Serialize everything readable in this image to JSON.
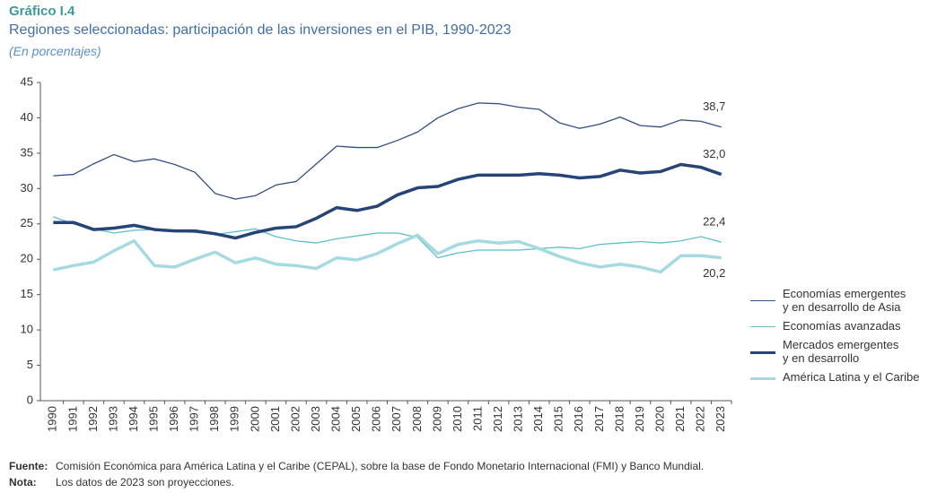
{
  "chart_data": {
    "type": "line",
    "title": "Gráfico I.4",
    "subtitle": "Regiones seleccionadas: participación de las inversiones en el PIB, 1990-2023",
    "unit_note": "(En porcentajes)",
    "categories": [
      "1990",
      "1991",
      "1992",
      "1993",
      "1994",
      "1995",
      "1996",
      "1997",
      "1998",
      "1999",
      "2000",
      "2001",
      "2002",
      "2003",
      "2004",
      "2005",
      "2006",
      "2007",
      "2008",
      "2009",
      "2010",
      "2011",
      "2012",
      "2013",
      "2014",
      "2015",
      "2016",
      "2017",
      "2018",
      "2019",
      "2020",
      "2021",
      "2022",
      "2023"
    ],
    "ylim": [
      0,
      45
    ],
    "yticks": [
      0,
      5,
      10,
      15,
      20,
      25,
      30,
      35,
      40,
      45
    ],
    "grid": false,
    "legend": "right",
    "series": [
      {
        "name": "Economías emergentes\ny en desarrollo de Asia",
        "color": "#2f4f86",
        "style": "thin",
        "label_position": "above",
        "values": [
          31.8,
          32,
          33.5,
          34.8,
          33.8,
          34.2,
          33.4,
          32.3,
          29.3,
          28.5,
          29,
          30.5,
          31,
          33.5,
          36,
          35.8,
          35.8,
          36.8,
          38,
          40,
          41.3,
          42.1,
          42,
          41.5,
          41.2,
          39.3,
          38.5,
          39.1,
          40.1,
          38.9,
          38.7,
          39.7,
          39.5,
          38.7
        ],
        "value_labels": [
          null,
          null,
          null,
          null,
          null,
          null,
          null,
          null,
          null,
          null,
          null,
          null,
          null,
          null,
          null,
          null,
          null,
          null,
          null,
          null,
          null,
          null,
          null,
          null,
          null,
          null,
          null,
          null,
          null,
          null,
          null,
          null,
          null,
          "38,7"
        ]
      },
      {
        "name": "Economías avanzadas",
        "color": "#5cbfca",
        "style": "thin",
        "label_position": "above",
        "values": [
          26,
          25,
          24.3,
          23.7,
          24.1,
          24.2,
          23.9,
          23.8,
          23.5,
          23.9,
          24.3,
          23.2,
          22.6,
          22.3,
          22.9,
          23.3,
          23.7,
          23.7,
          23.1,
          20.2,
          20.9,
          21.3,
          21.3,
          21.3,
          21.5,
          21.7,
          21.5,
          22.1,
          22.3,
          22.5,
          22.3,
          22.6,
          23.2,
          22.4
        ],
        "value_labels": [
          null,
          null,
          null,
          null,
          null,
          null,
          null,
          null,
          null,
          null,
          null,
          null,
          null,
          null,
          null,
          null,
          null,
          null,
          null,
          null,
          null,
          null,
          null,
          null,
          null,
          null,
          null,
          null,
          null,
          null,
          null,
          null,
          null,
          "22,4"
        ]
      },
      {
        "name": "Mercados emergentes\ny en desarrollo",
        "color": "#264478",
        "style": "thick",
        "label_position": "above",
        "values": [
          25.2,
          25.2,
          24.2,
          24.4,
          24.8,
          24.2,
          24,
          24,
          23.6,
          23,
          23.8,
          24.4,
          24.6,
          25.8,
          27.3,
          26.9,
          27.5,
          29.1,
          30.1,
          30.3,
          31.3,
          31.9,
          31.9,
          31.9,
          32.1,
          31.9,
          31.5,
          31.7,
          32.6,
          32.2,
          32.4,
          33.4,
          33,
          32
        ],
        "value_labels": [
          null,
          null,
          null,
          null,
          null,
          null,
          null,
          null,
          null,
          null,
          null,
          null,
          null,
          null,
          null,
          null,
          null,
          null,
          null,
          null,
          null,
          null,
          null,
          null,
          null,
          null,
          null,
          null,
          null,
          null,
          null,
          null,
          null,
          "32,0"
        ]
      },
      {
        "name": "América Latina y el Caribe",
        "color": "#a6dae2",
        "style": "thick",
        "label_position": "below",
        "values": [
          18.5,
          19.1,
          19.6,
          21.2,
          22.6,
          19.1,
          18.9,
          20,
          21,
          19.5,
          20.2,
          19.3,
          19.1,
          18.7,
          20.2,
          19.9,
          20.8,
          22.2,
          23.4,
          20.8,
          22.1,
          22.6,
          22.3,
          22.5,
          21.5,
          20.4,
          19.5,
          18.9,
          19.3,
          18.9,
          18.2,
          20.5,
          20.5,
          20.2
        ],
        "value_labels": [
          null,
          null,
          null,
          null,
          null,
          null,
          null,
          null,
          null,
          null,
          null,
          null,
          null,
          null,
          null,
          null,
          null,
          null,
          null,
          null,
          null,
          null,
          null,
          null,
          null,
          null,
          null,
          null,
          null,
          null,
          null,
          null,
          null,
          "20,2"
        ]
      }
    ],
    "source_label": "Fuente:",
    "source": "Comisión Económica para América Latina y el Caribe (CEPAL), sobre la base de Fondo Monetario Internacional (FMI) y Banco Mundial.",
    "note_label": "Nota:",
    "note": "Los datos de 2023 son proyecciones."
  }
}
